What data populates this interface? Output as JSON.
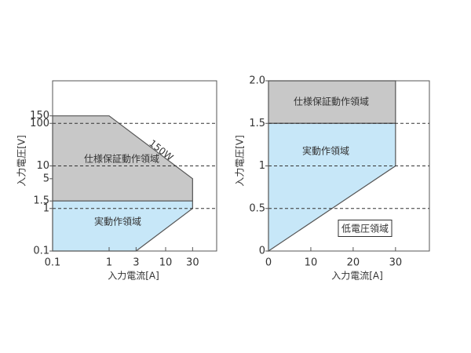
{
  "chart_data": [
    {
      "type": "region",
      "xlabel": "入力電流[A]",
      "ylabel": "入力電圧[V]",
      "xscale": "log",
      "yscale": "log",
      "xlim": [
        0.1,
        80
      ],
      "ylim": [
        0.1,
        1000
      ],
      "xticks": [
        0.1,
        1,
        3,
        10,
        30
      ],
      "yticks": [
        0.1,
        1,
        1.5,
        5,
        10,
        100,
        150
      ],
      "hlines": [
        1,
        10,
        100
      ],
      "regions": [
        {
          "name": "仕様保証動作領域",
          "color": "#c8c8c8",
          "x": [
            0.1,
            1,
            30,
            30,
            0.1
          ],
          "y": [
            150,
            150,
            5,
            1.5,
            1.5
          ]
        },
        {
          "name": "実動作領域",
          "color": "#c7e7f8",
          "x": [
            0.1,
            0.1,
            30,
            30,
            3
          ],
          "y": [
            0.1,
            1.5,
            1.5,
            1,
            0.1
          ]
        }
      ],
      "annotations": [
        "150W"
      ]
    },
    {
      "type": "region",
      "xlabel": "入力電流[A]",
      "ylabel": "入力電圧[V]",
      "xscale": "linear",
      "yscale": "linear",
      "xlim": [
        0,
        38
      ],
      "ylim": [
        0,
        2
      ],
      "xticks": [
        0,
        10,
        20,
        30
      ],
      "yticks": [
        0,
        0.5,
        1,
        1.5,
        {
          "value": 2,
          "label": "2.0"
        }
      ],
      "hlines": [
        0.5,
        1,
        1.5
      ],
      "regions": [
        {
          "name": "仕様保証動作領域",
          "color": "#c8c8c8",
          "x": [
            0,
            0,
            30,
            30
          ],
          "y": [
            1.5,
            2,
            2,
            1.5
          ]
        },
        {
          "name": "実動作領域",
          "color": "#c7e7f8",
          "x": [
            0,
            0,
            30,
            30
          ],
          "y": [
            0,
            1.5,
            1.5,
            1
          ]
        }
      ],
      "annotations": [
        "低電圧領域"
      ]
    }
  ]
}
